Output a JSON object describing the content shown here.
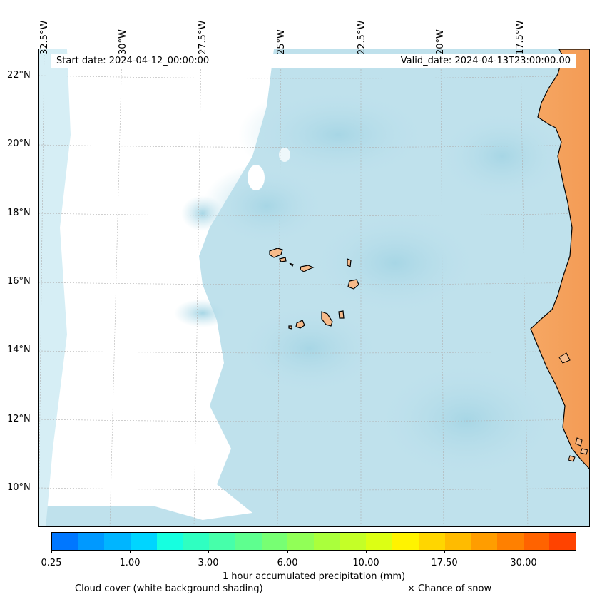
{
  "header": {
    "start_date": "Start date: 2024-04-12_00:00:00",
    "valid_date": "Valid_date: 2024-04-13T23:00:00.00"
  },
  "map": {
    "longitude_labels": [
      "32.5°W",
      "30°W",
      "27.5°W",
      "25°W",
      "22.5°W",
      "20°W",
      "17.5°W"
    ],
    "latitude_labels": [
      "22°N",
      "20°N",
      "18°N",
      "16°N",
      "14°N",
      "12°N",
      "10°N"
    ],
    "colors": {
      "ocean_cloud": "#bfe1ec",
      "cloud_dense": "#a9d8e6",
      "land_coast": "#f4a35c",
      "land_interior": "#f19a56",
      "island_fill": "#f6ba8a",
      "gridline": "#b0b0b0"
    }
  },
  "colorbar": {
    "label": "1 hour accumulated precipitation (mm)",
    "tick_labels": [
      "0.25",
      "1.00",
      "3.00",
      "6.00",
      "10.00",
      "17.50",
      "30.00"
    ],
    "colors": [
      "#0077ff",
      "#0099ff",
      "#00b5ff",
      "#00d5ff",
      "#16ffe0",
      "#2fffc1",
      "#46ffaa",
      "#5eff8f",
      "#77ff73",
      "#91ff57",
      "#aaff3c",
      "#c4ff27",
      "#dcff14",
      "#fff300",
      "#ffd600",
      "#ffbb00",
      "#ff9d00",
      "#ff8000",
      "#ff6300",
      "#ff4300"
    ]
  },
  "legend": {
    "cloud_cover": "Cloud cover (white background shading)",
    "snow": "× Chance of snow"
  }
}
